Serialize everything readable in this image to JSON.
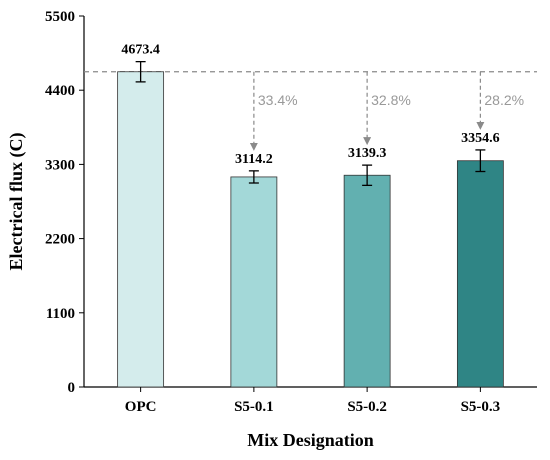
{
  "chart_data": {
    "type": "bar",
    "xlabel": "Mix Designation",
    "ylabel": "Electrical flux (C)",
    "ylim": [
      0,
      5500
    ],
    "yticks": [
      0,
      1100,
      2200,
      3300,
      4400,
      5500
    ],
    "categories": [
      "OPC",
      "S5-0.1",
      "S5-0.2",
      "S5-0.3"
    ],
    "values": [
      4673.4,
      3114.2,
      3139.3,
      3354.6
    ],
    "value_labels": [
      "4673.4",
      "3114.2",
      "3139.3",
      "3354.6"
    ],
    "errors": [
      150,
      90,
      150,
      160
    ],
    "colors": [
      "#d4ecec",
      "#a3d8d8",
      "#62b0b0",
      "#2f8585"
    ],
    "reference_value": 4673.4,
    "reductions": [
      {
        "category": "S5-0.1",
        "label": "33.4%"
      },
      {
        "category": "S5-0.2",
        "label": "32.8%"
      },
      {
        "category": "S5-0.3",
        "label": "28.2%"
      }
    ]
  }
}
